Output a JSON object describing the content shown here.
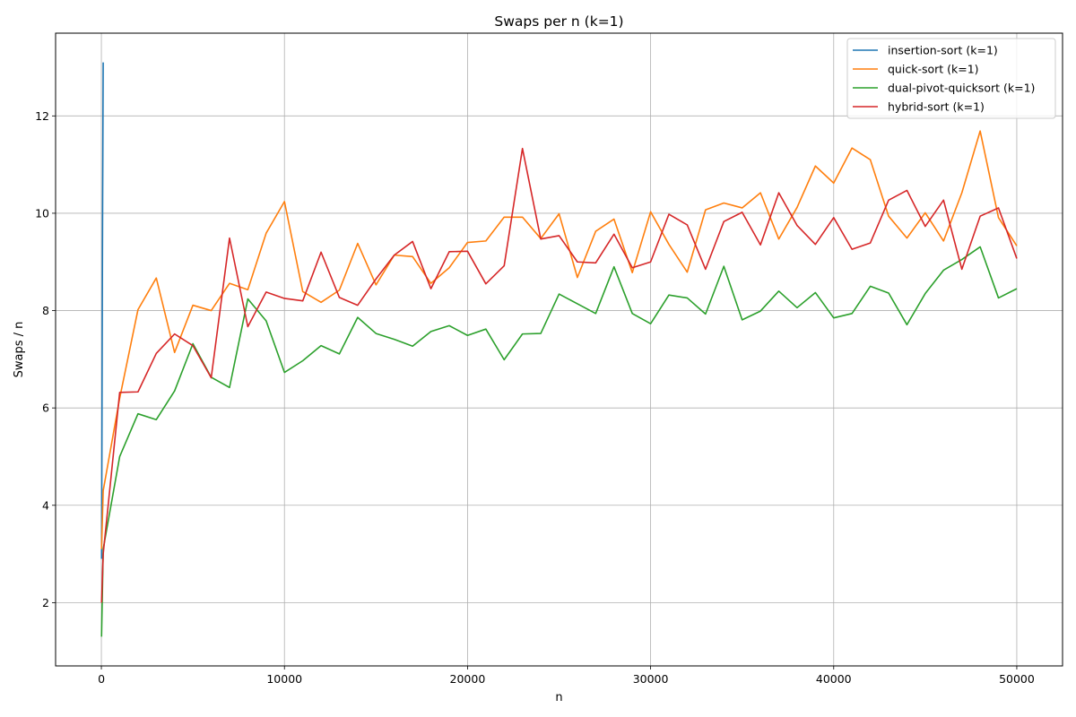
{
  "chart_data": {
    "type": "line",
    "title": "Swaps per n (k=1)",
    "xlabel": "n",
    "ylabel": "Swaps / n",
    "xlim": [
      -2500,
      52500
    ],
    "ylim": [
      0.7,
      13.7
    ],
    "xticks": [
      0,
      10000,
      20000,
      30000,
      40000,
      50000
    ],
    "yticks": [
      2,
      4,
      6,
      8,
      10,
      12
    ],
    "grid": true,
    "legend_position": "upper right",
    "series": [
      {
        "name": "insertion-sort (k=1)",
        "color": "#1f77b4",
        "x": [
          10,
          20,
          30,
          40,
          50,
          60,
          70,
          80,
          90,
          100
        ],
        "y": [
          2.9,
          4.0,
          5.1,
          6.5,
          7.9,
          9.2,
          10.3,
          11.2,
          12.2,
          13.1
        ]
      },
      {
        "name": "quick-sort (k=1)",
        "color": "#ff7f0e",
        "x": [
          10,
          100,
          1000,
          2000,
          3000,
          4000,
          5000,
          6000,
          7000,
          8000,
          9000,
          10000,
          11000,
          12000,
          13000,
          14000,
          15000,
          16000,
          17000,
          18000,
          19000,
          20000,
          21000,
          22000,
          23000,
          24000,
          25000,
          26000,
          27000,
          28000,
          29000,
          30000,
          31000,
          32000,
          33000,
          34000,
          35000,
          36000,
          37000,
          38000,
          39000,
          40000,
          41000,
          42000,
          43000,
          44000,
          45000,
          46000,
          47000,
          48000,
          49000,
          50000
        ],
        "y": [
          3.1,
          4.3,
          6.2,
          8.02,
          8.67,
          7.14,
          8.11,
          8.0,
          8.56,
          8.43,
          9.59,
          10.24,
          8.39,
          8.17,
          8.42,
          9.38,
          8.53,
          9.14,
          9.11,
          8.56,
          8.88,
          9.4,
          9.43,
          9.92,
          9.92,
          9.48,
          9.99,
          8.68,
          9.63,
          9.88,
          8.78,
          10.03,
          9.36,
          8.79,
          10.07,
          10.21,
          10.11,
          10.42,
          9.47,
          10.12,
          10.97,
          10.62,
          11.34,
          11.1,
          9.94,
          9.49,
          10.01,
          9.43,
          10.42,
          11.69,
          9.91,
          9.33
        ]
      },
      {
        "name": "dual-pivot-quicksort (k=1)",
        "color": "#2ca02c",
        "x": [
          10,
          100,
          1000,
          2000,
          3000,
          4000,
          5000,
          6000,
          7000,
          8000,
          9000,
          10000,
          11000,
          12000,
          13000,
          14000,
          15000,
          16000,
          17000,
          18000,
          19000,
          20000,
          21000,
          22000,
          23000,
          24000,
          25000,
          26000,
          27000,
          28000,
          29000,
          30000,
          31000,
          32000,
          33000,
          34000,
          35000,
          36000,
          37000,
          38000,
          39000,
          40000,
          41000,
          42000,
          43000,
          44000,
          45000,
          46000,
          47000,
          48000,
          49000,
          50000
        ],
        "y": [
          1.3,
          3.1,
          5.0,
          5.88,
          5.76,
          6.35,
          7.32,
          6.63,
          6.42,
          8.24,
          7.79,
          6.73,
          6.97,
          7.28,
          7.11,
          7.86,
          7.53,
          7.41,
          7.27,
          7.57,
          7.69,
          7.49,
          7.62,
          6.99,
          7.52,
          7.53,
          8.34,
          8.14,
          7.94,
          8.9,
          7.94,
          7.73,
          8.32,
          8.26,
          7.93,
          8.91,
          7.81,
          7.99,
          8.4,
          8.06,
          8.37,
          7.85,
          7.94,
          8.5,
          8.36,
          7.71,
          8.35,
          8.83,
          9.05,
          9.31,
          8.26,
          8.45
        ]
      },
      {
        "name": "hybrid-sort (k=1)",
        "color": "#d62728",
        "x": [
          10,
          100,
          1000,
          2000,
          3000,
          4000,
          5000,
          6000,
          7000,
          8000,
          9000,
          10000,
          11000,
          12000,
          13000,
          14000,
          15000,
          16000,
          17000,
          18000,
          19000,
          20000,
          21000,
          22000,
          23000,
          24000,
          25000,
          26000,
          27000,
          28000,
          29000,
          30000,
          31000,
          32000,
          33000,
          34000,
          35000,
          36000,
          37000,
          38000,
          39000,
          40000,
          41000,
          42000,
          43000,
          44000,
          45000,
          46000,
          47000,
          48000,
          49000,
          50000
        ],
        "y": [
          2.0,
          3.0,
          6.32,
          6.33,
          7.12,
          7.52,
          7.28,
          6.62,
          9.49,
          7.67,
          8.38,
          8.25,
          8.2,
          9.2,
          8.27,
          8.11,
          8.65,
          9.14,
          9.42,
          8.45,
          9.21,
          9.22,
          8.55,
          8.92,
          11.33,
          9.47,
          9.54,
          9.0,
          8.98,
          9.57,
          8.88,
          9.0,
          9.98,
          9.76,
          8.85,
          9.83,
          10.02,
          9.35,
          10.42,
          9.75,
          9.36,
          9.91,
          9.26,
          9.39,
          10.27,
          10.47,
          9.73,
          10.27,
          8.85,
          9.94,
          10.11,
          9.07
        ]
      }
    ]
  }
}
